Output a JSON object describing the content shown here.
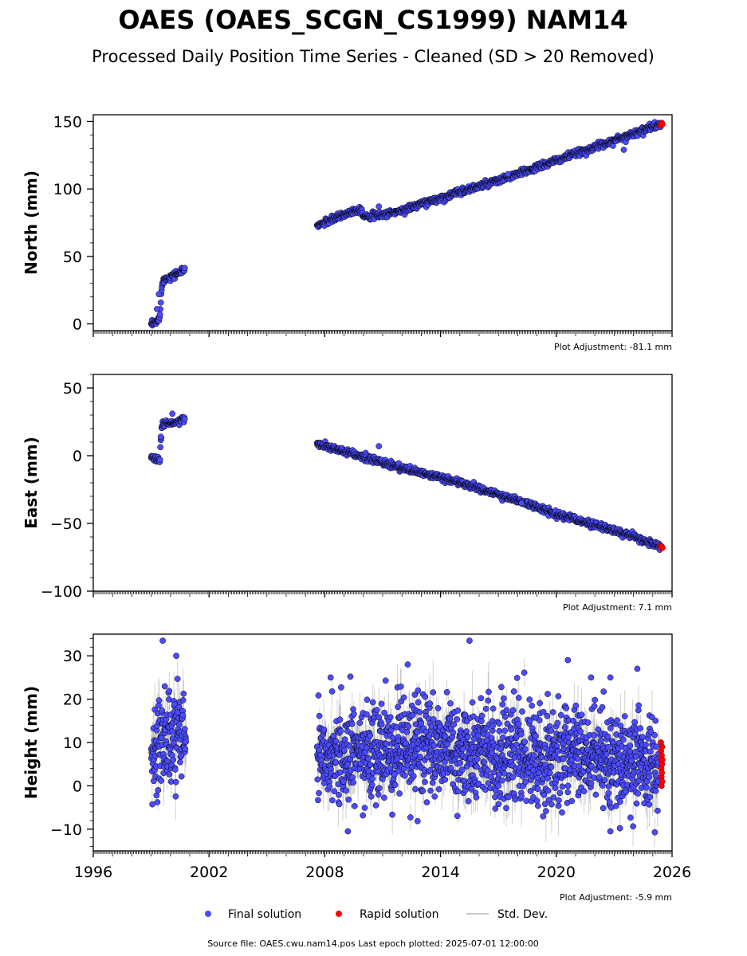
{
  "title": "OAES (OAES_SCGN_CS1999) NAM14",
  "subtitle": "Processed Daily Position Time Series - Cleaned (SD > 20 Removed)",
  "source_line": "Source file: OAES.cwu.nam14.pos  Last epoch plotted: 2025-07-01 12:00:00",
  "legend": {
    "final": "Final solution",
    "rapid": "Rapid solution",
    "stddev": "Std. Dev."
  },
  "colors": {
    "final": "#4b4bff",
    "rapid": "#ff0000",
    "stddev": "#b0b0b0",
    "edge": "#000000"
  },
  "chart_data": [
    {
      "type": "scatter",
      "ylabel": "North (mm)",
      "adjustment": "Plot Adjustment: -81.1 mm",
      "xlim": [
        1996,
        2026
      ],
      "ylim": [
        -5,
        155
      ],
      "yticks": [
        0,
        50,
        100,
        150
      ],
      "xticks": [
        1996,
        2002,
        2008,
        2014,
        2020,
        2026
      ],
      "show_xtick_labels": false,
      "final_trend": [
        [
          1999.0,
          -1,
          2
        ],
        [
          1999.1,
          0,
          2
        ],
        [
          1999.2,
          1,
          2
        ],
        [
          1999.35,
          2,
          2
        ],
        [
          1999.45,
          5,
          3
        ],
        [
          1999.55,
          30,
          2
        ],
        [
          1999.7,
          33,
          2
        ],
        [
          2000.0,
          35,
          2
        ],
        [
          2000.3,
          37,
          2
        ],
        [
          2000.6,
          39,
          2
        ],
        [
          2000.75,
          40,
          2
        ],
        [
          2007.6,
          73,
          2
        ],
        [
          2008.0,
          75,
          2
        ],
        [
          2008.5,
          78,
          2
        ],
        [
          2009.0,
          81,
          2
        ],
        [
          2009.5,
          84,
          2
        ],
        [
          2009.9,
          85,
          2
        ],
        [
          2010.0,
          80,
          2
        ],
        [
          2010.5,
          80,
          2
        ],
        [
          2011.0,
          81,
          2
        ],
        [
          2012.0,
          84,
          2
        ],
        [
          2013.0,
          89,
          2
        ],
        [
          2014.0,
          93,
          2
        ],
        [
          2015.0,
          98,
          2
        ],
        [
          2016.0,
          102,
          2
        ],
        [
          2017.0,
          106,
          2
        ],
        [
          2018.0,
          111,
          2
        ],
        [
          2019.0,
          116,
          2
        ],
        [
          2020.0,
          121,
          2
        ],
        [
          2021.0,
          126,
          2
        ],
        [
          2022.0,
          131,
          2
        ],
        [
          2023.0,
          136,
          2
        ],
        [
          2024.0,
          141,
          2
        ],
        [
          2025.0,
          146,
          2
        ],
        [
          2025.4,
          148,
          2
        ]
      ],
      "outliers": [
        [
          1999.3,
          11
        ],
        [
          1999.4,
          22
        ],
        [
          2023.5,
          129
        ],
        [
          2010.8,
          87
        ],
        [
          2017.5,
          111
        ]
      ],
      "rapid_range": [
        2025.4,
        2025.5
      ],
      "rapid_values": [
        147,
        148,
        149,
        148
      ]
    },
    {
      "type": "scatter",
      "ylabel": "East (mm)",
      "adjustment": "Plot Adjustment: 7.1 mm",
      "xlim": [
        1996,
        2026
      ],
      "ylim": [
        -100,
        60
      ],
      "yticks": [
        -100,
        -50,
        0,
        50
      ],
      "xticks": [
        1996,
        2002,
        2008,
        2014,
        2020,
        2026
      ],
      "show_xtick_labels": false,
      "final_trend": [
        [
          1999.0,
          -1,
          2
        ],
        [
          1999.2,
          -2,
          2
        ],
        [
          1999.45,
          -3,
          2
        ],
        [
          1999.55,
          22,
          3
        ],
        [
          1999.8,
          25,
          2
        ],
        [
          2000.2,
          24,
          2
        ],
        [
          2000.75,
          27,
          2
        ],
        [
          2007.6,
          9,
          2
        ],
        [
          2008.0,
          7,
          2
        ],
        [
          2009.0,
          3,
          2
        ],
        [
          2010.0,
          -1,
          2
        ],
        [
          2011.0,
          -5,
          2
        ],
        [
          2012.0,
          -9,
          2
        ],
        [
          2013.0,
          -13,
          2
        ],
        [
          2014.0,
          -16,
          2
        ],
        [
          2015.0,
          -20,
          2
        ],
        [
          2016.0,
          -24,
          2
        ],
        [
          2017.0,
          -29,
          2
        ],
        [
          2018.0,
          -33,
          2
        ],
        [
          2019.0,
          -38,
          2
        ],
        [
          2020.0,
          -43,
          2
        ],
        [
          2021.0,
          -47,
          2
        ],
        [
          2022.0,
          -51,
          2
        ],
        [
          2023.0,
          -55,
          2
        ],
        [
          2024.0,
          -60,
          2
        ],
        [
          2025.0,
          -65,
          2
        ],
        [
          2025.4,
          -67,
          2
        ]
      ],
      "outliers": [
        [
          2010.8,
          7
        ],
        [
          1999.5,
          14
        ],
        [
          2000.1,
          31
        ],
        [
          2018.2,
          -35
        ]
      ],
      "rapid_range": [
        2025.4,
        2025.5
      ],
      "rapid_values": [
        -67,
        -68,
        -67,
        -68
      ]
    },
    {
      "type": "scatter",
      "ylabel": "Height (mm)",
      "adjustment": "Plot Adjustment: -5.9 mm",
      "xlim": [
        1996,
        2026
      ],
      "ylim": [
        -15,
        35
      ],
      "yticks": [
        -10,
        0,
        10,
        20,
        30
      ],
      "xticks": [
        1996,
        2002,
        2008,
        2014,
        2020,
        2026
      ],
      "show_xtick_labels": true,
      "final_trend": [
        [
          1999.0,
          5,
          6
        ],
        [
          1999.5,
          12,
          6
        ],
        [
          2000.0,
          10,
          6
        ],
        [
          2000.8,
          13,
          5
        ],
        [
          2007.6,
          9,
          6
        ],
        [
          2009.0,
          7,
          6
        ],
        [
          2011.0,
          8,
          6
        ],
        [
          2013.0,
          9,
          6
        ],
        [
          2015.0,
          8,
          6
        ],
        [
          2017.0,
          7,
          6
        ],
        [
          2019.0,
          7,
          6
        ],
        [
          2021.0,
          7,
          6
        ],
        [
          2023.0,
          6,
          6
        ],
        [
          2025.3,
          5,
          6
        ]
      ],
      "outliers": [
        [
          1999.6,
          33.5
        ],
        [
          2015.5,
          33.5
        ],
        [
          2020.6,
          29
        ],
        [
          2012.3,
          28
        ],
        [
          2000.3,
          30
        ],
        [
          2021.8,
          25
        ],
        [
          2008.3,
          25
        ],
        [
          2022.8,
          25
        ],
        [
          2024.2,
          27
        ],
        [
          2009.2,
          -10.5
        ],
        [
          2022.8,
          -10.5
        ]
      ],
      "rapid_range": [
        2025.42,
        2025.5
      ],
      "rapid_values": [
        10,
        8,
        6,
        4,
        2,
        0,
        7,
        3,
        5,
        9,
        1,
        6
      ]
    }
  ]
}
